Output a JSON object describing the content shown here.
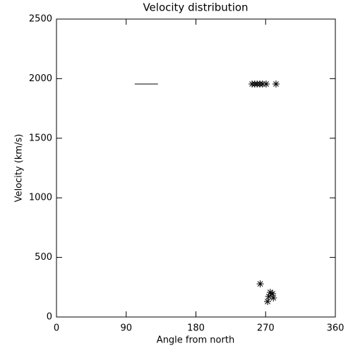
{
  "chart_data": {
    "type": "scatter",
    "title": "Velocity distribution",
    "x_label": "Angle from north",
    "y_label": "Velocity (km/s)",
    "xlim": [
      0,
      360
    ],
    "xticks": [
      0,
      90,
      180,
      270,
      360
    ],
    "ylim": [
      0,
      2500
    ],
    "yticks": [
      0,
      500,
      1000,
      1500,
      2000,
      2500
    ],
    "color": "#000000",
    "series": [
      {
        "style": "asterisk",
        "x": [
          252.5,
          256,
          259,
          262.5,
          266,
          270.7,
          283.4
        ],
        "values": [
          1955,
          1955,
          1955,
          1955,
          1955,
          1955,
          1955
        ]
      },
      {
        "style": "asterisk",
        "x": [
          263,
          276,
          279,
          274,
          280,
          272.5
        ],
        "values": [
          278,
          207,
          195,
          172,
          160,
          130
        ]
      },
      {
        "style": "line",
        "x": [
          101,
          131
        ],
        "values": [
          1955,
          1955
        ]
      }
    ]
  }
}
